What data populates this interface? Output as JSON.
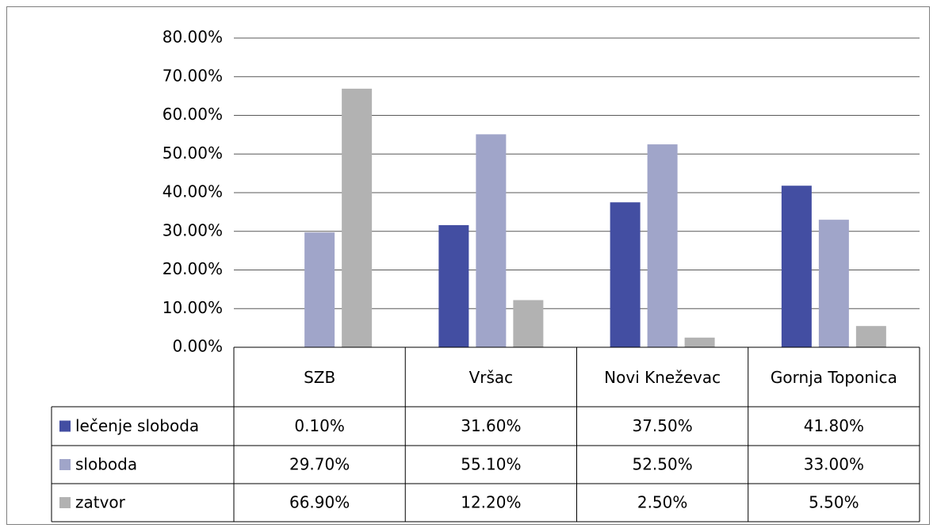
{
  "chart_data": {
    "type": "bar",
    "categories": [
      "SZB",
      "Vršac",
      "Novi Kneževac",
      "Gornja Toponica"
    ],
    "series": [
      {
        "name": "lečenje sloboda",
        "color": "#434ea2",
        "values": [
          0.1,
          31.6,
          37.5,
          41.8
        ],
        "value_labels": [
          "0.10%",
          "31.60%",
          "37.50%",
          "41.80%"
        ]
      },
      {
        "name": "sloboda",
        "color": "#a0a5c9",
        "values": [
          29.7,
          55.1,
          52.5,
          33.0
        ],
        "value_labels": [
          "29.70%",
          "55.10%",
          "52.50%",
          "33.00%"
        ]
      },
      {
        "name": "zatvor",
        "color": "#b2b2b2",
        "values": [
          66.9,
          12.2,
          2.5,
          5.5
        ],
        "value_labels": [
          "66.90%",
          "12.20%",
          "2.50%",
          "5.50%"
        ]
      }
    ],
    "ylim": [
      0,
      80
    ],
    "yticks": [
      {
        "value": 0,
        "label": "0.00%"
      },
      {
        "value": 10,
        "label": "10.00%"
      },
      {
        "value": 20,
        "label": "20.00%"
      },
      {
        "value": 30,
        "label": "30.00%"
      },
      {
        "value": 40,
        "label": "40.00%"
      },
      {
        "value": 50,
        "label": "50.00%"
      },
      {
        "value": 60,
        "label": "60.00%"
      },
      {
        "value": 70,
        "label": "70.00%"
      },
      {
        "value": 80,
        "label": "80.00%"
      }
    ],
    "grid": true
  }
}
